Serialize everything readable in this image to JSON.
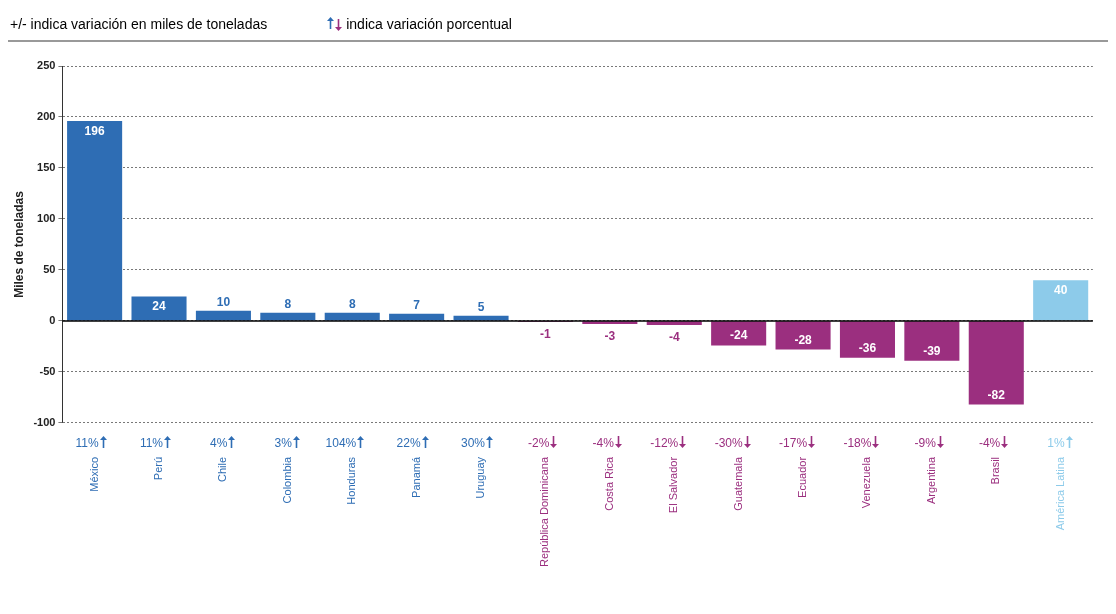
{
  "chart_data": {
    "type": "bar",
    "ylabel": "Miles de toneladas",
    "categories": [
      "México",
      "Perú",
      "Chile",
      "Colombia",
      "Honduras",
      "Panamá",
      "Uruguay",
      "República Dominicana",
      "Costa Rica",
      "El Salvador",
      "Guatemala",
      "Ecuador",
      "Venezuela",
      "Argentina",
      "Brasil",
      "América Latina"
    ],
    "values": [
      196,
      24,
      10,
      8,
      8,
      7,
      5,
      -1,
      -3,
      -4,
      -24,
      -28,
      -36,
      -39,
      -82,
      40
    ],
    "colors": [
      "#2e6db4",
      "#2e6db4",
      "#2e6db4",
      "#2e6db4",
      "#2e6db4",
      "#2e6db4",
      "#2e6db4",
      "#9b2f7f",
      "#9b2f7f",
      "#9b2f7f",
      "#9b2f7f",
      "#9b2f7f",
      "#9b2f7f",
      "#9b2f7f",
      "#9b2f7f",
      "#8dcbea"
    ],
    "data_labels": true,
    "ylim": [
      -100,
      250
    ],
    "yticks": [
      -100,
      -50,
      0,
      50,
      100,
      150,
      200,
      250
    ],
    "grid": "y",
    "legend": false,
    "annotations": [
      "+/- indica variación en miles de toneladas",
      "indica variación porcentual",
      "11%",
      "11%",
      "4%",
      "3%",
      "104%",
      "22%",
      "30%",
      "-2%",
      "-4%",
      "-12%",
      "-30%",
      "-17%",
      "-18%",
      "-9%",
      "-4%",
      "1%"
    ]
  }
}
